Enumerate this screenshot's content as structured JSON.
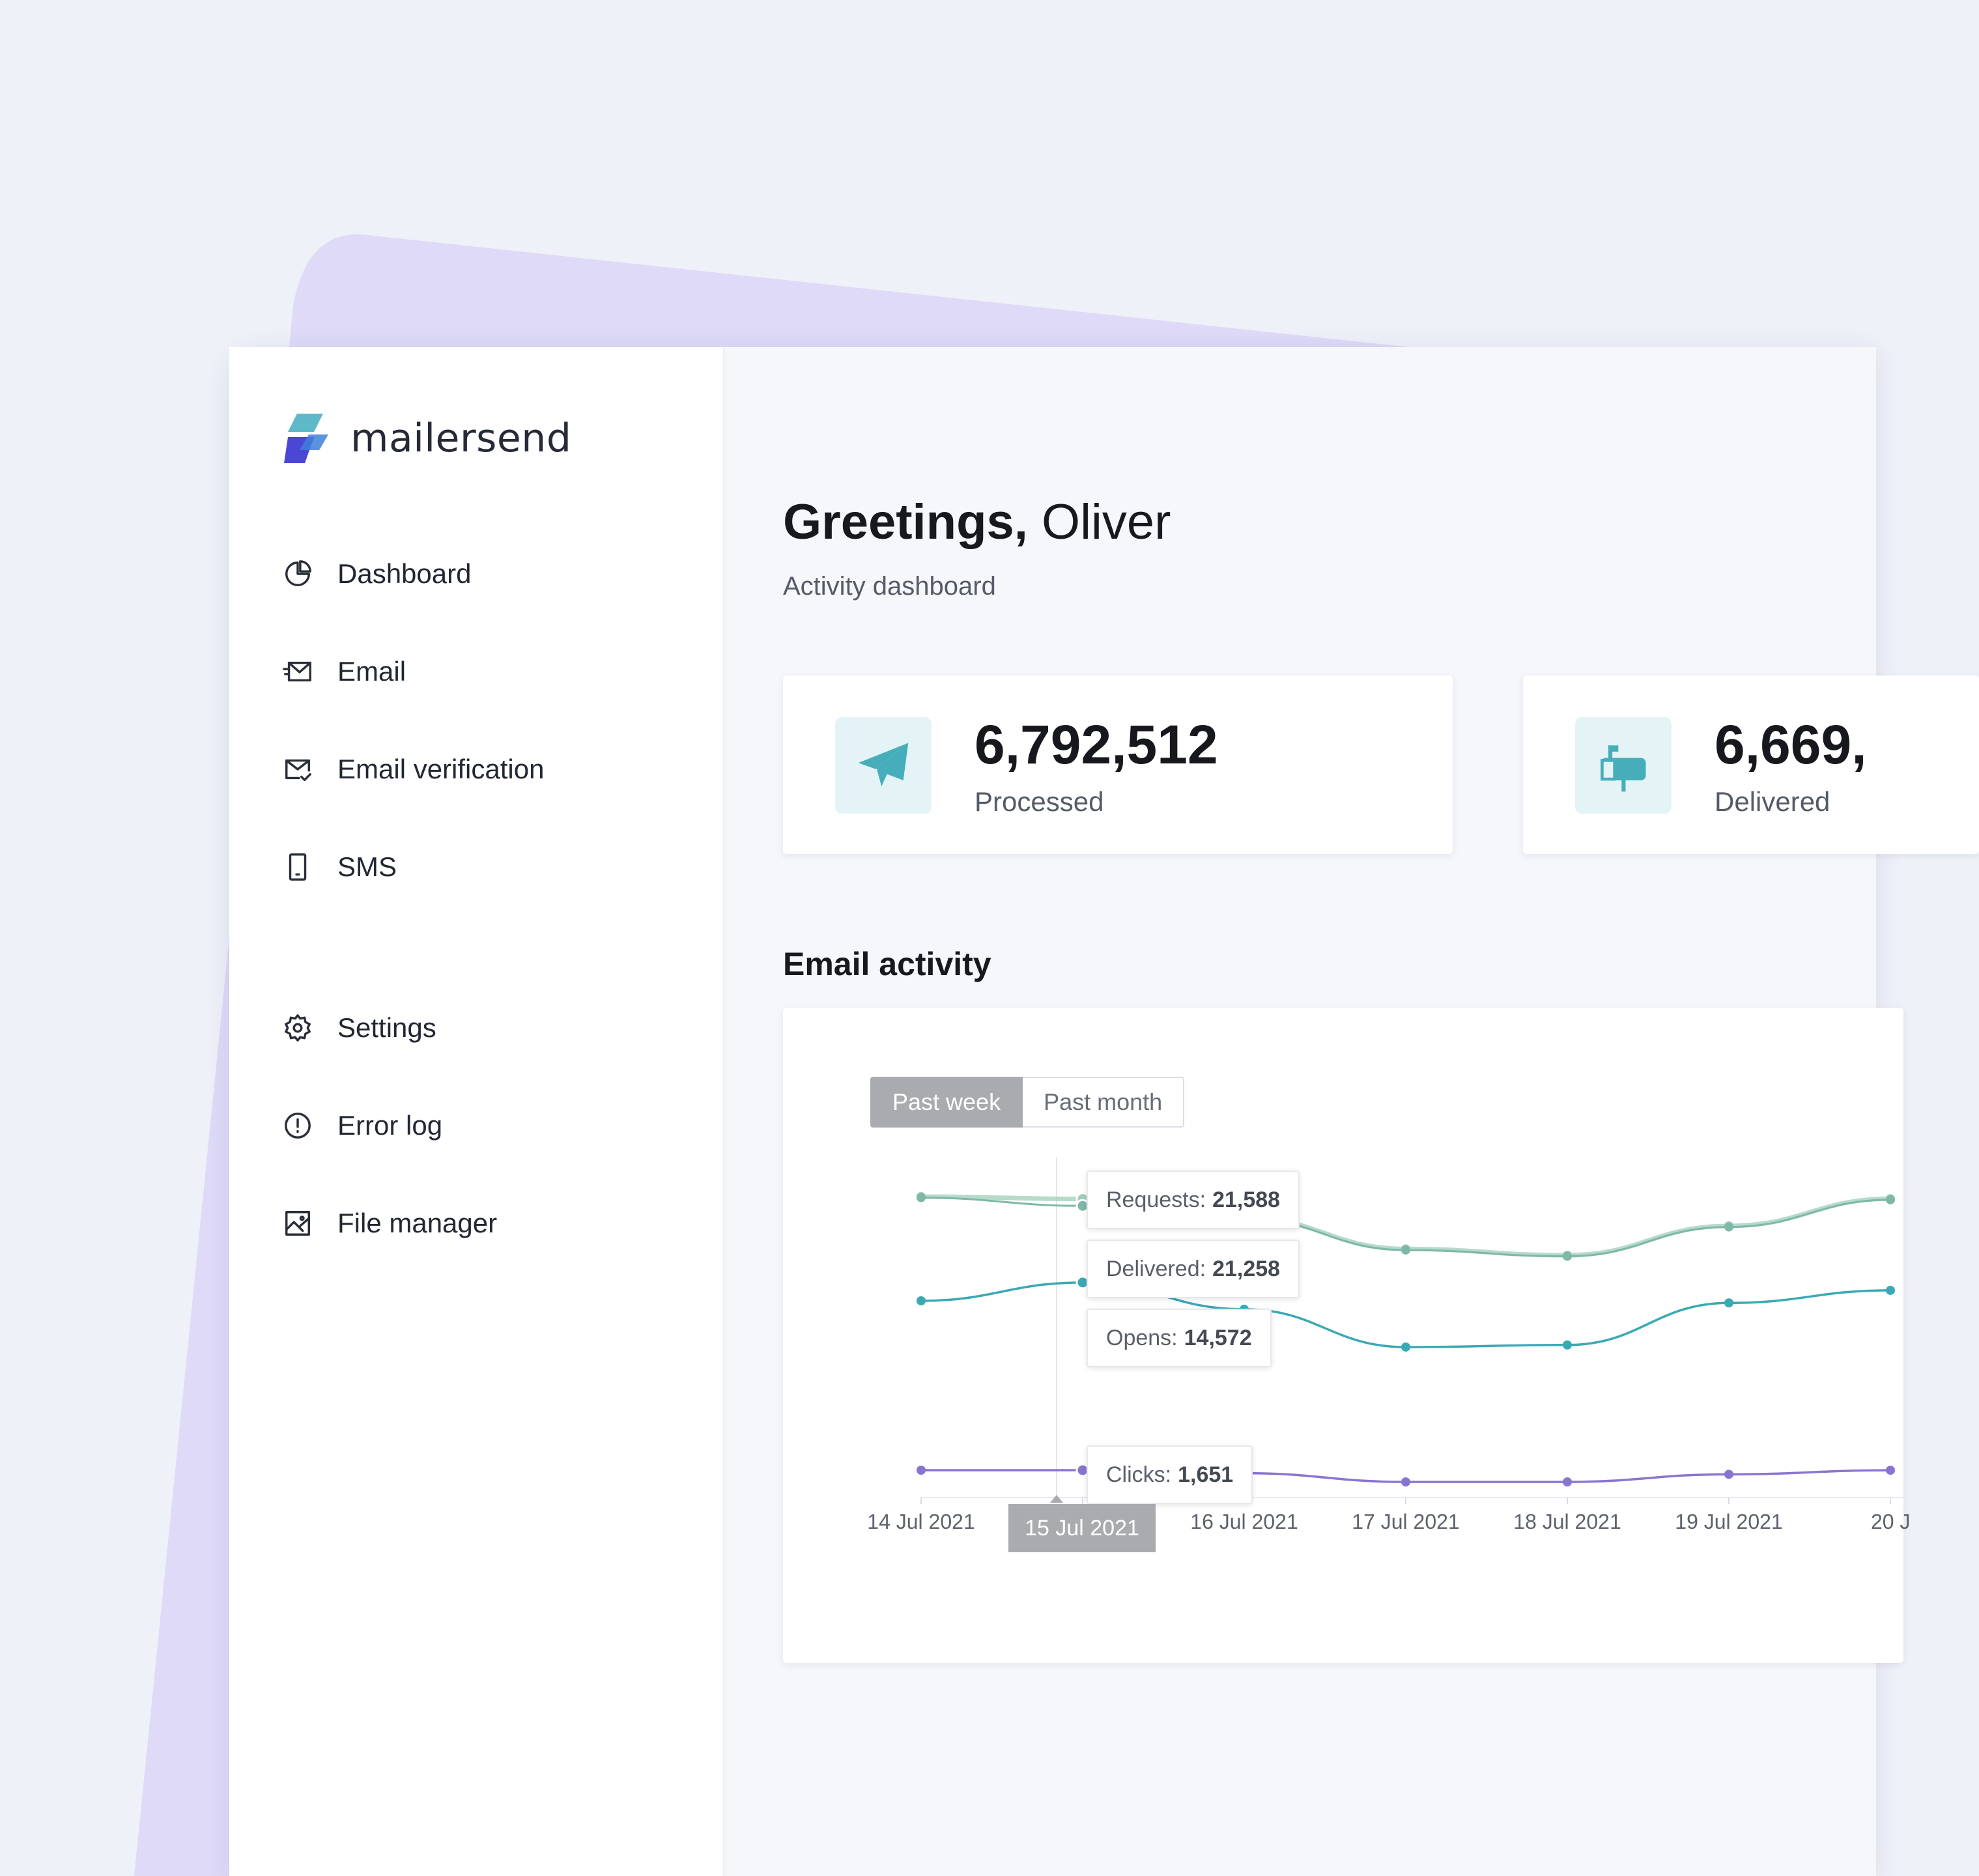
{
  "brand": {
    "name": "mailersend"
  },
  "sidebar": {
    "items": [
      {
        "label": "Dashboard",
        "icon": "pie-chart-icon"
      },
      {
        "label": "Email",
        "icon": "email-icon"
      },
      {
        "label": "Email verification",
        "icon": "email-check-icon"
      },
      {
        "label": "SMS",
        "icon": "phone-icon"
      },
      {
        "label": "Settings",
        "icon": "gear-icon"
      },
      {
        "label": "Error log",
        "icon": "alert-circle-icon"
      },
      {
        "label": "File manager",
        "icon": "image-icon"
      }
    ]
  },
  "header": {
    "greeting_bold": "Greetings,",
    "greeting_name": "Oliver",
    "subtitle": "Activity dashboard"
  },
  "stats": [
    {
      "value": "6,792,512",
      "label": "Processed",
      "icon": "paper-plane-icon"
    },
    {
      "value": "6,669,",
      "label": "Delivered",
      "icon": "mailbox-icon"
    }
  ],
  "email_activity": {
    "title": "Email activity",
    "ranges": {
      "active": "Past week",
      "inactive": "Past month"
    },
    "tooltips": {
      "requests": {
        "label": "Requests:",
        "value": "21,588"
      },
      "delivered": {
        "label": "Delivered:",
        "value": "21,258"
      },
      "opens": {
        "label": "Opens:",
        "value": "14,572"
      },
      "clicks": {
        "label": "Clicks:",
        "value": "1,651"
      }
    },
    "highlighted_date": "15 Jul 2021"
  },
  "colors": {
    "requests": "#9fcdb9",
    "delivered": "#7fb8a8",
    "opens": "#3aa9b4",
    "clicks": "#8a74d2",
    "accent": "#4ab1bd"
  },
  "chart_data": {
    "type": "line",
    "x": [
      "14 Jul 2021",
      "15 Jul 2021",
      "16 Jul 2021",
      "17 Jul 2021",
      "18 Jul 2021",
      "19 Jul 2021",
      "20 J"
    ],
    "series": [
      {
        "name": "Requests",
        "values": [
          21700,
          21588,
          20700,
          19200,
          18900,
          20300,
          21600
        ]
      },
      {
        "name": "Delivered",
        "values": [
          21650,
          21258,
          20650,
          19150,
          18850,
          20250,
          21550
        ]
      },
      {
        "name": "Opens",
        "values": [
          13700,
          14572,
          13300,
          11500,
          11600,
          13600,
          14200
        ]
      },
      {
        "name": "Clicks",
        "values": [
          1651,
          1651,
          1600,
          1450,
          1450,
          1580,
          1650
        ]
      }
    ],
    "visible_x_count": 6.4,
    "grid": false,
    "legend": "none"
  }
}
